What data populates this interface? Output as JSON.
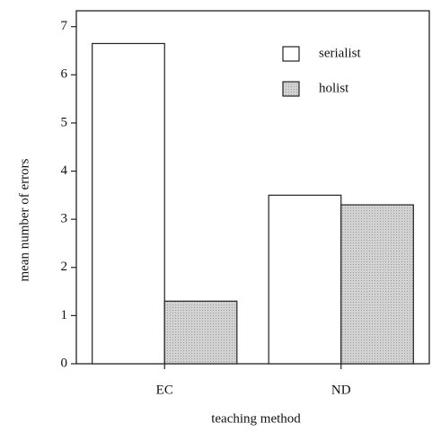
{
  "chart_data": {
    "type": "bar",
    "x_label": "teaching method",
    "y_label": "mean number of errors",
    "categories": [
      "EC",
      "ND"
    ],
    "series": [
      {
        "name": "serialist",
        "color": "#ffffff",
        "values": [
          6.65,
          3.5
        ]
      },
      {
        "name": "holist",
        "color": "#cdcdcd",
        "values": [
          1.3,
          3.3
        ]
      }
    ],
    "ylim": [
      0,
      7.33
    ],
    "yticks": [
      0,
      1,
      2,
      3,
      4,
      5,
      6,
      7
    ],
    "legend": "top-right"
  }
}
